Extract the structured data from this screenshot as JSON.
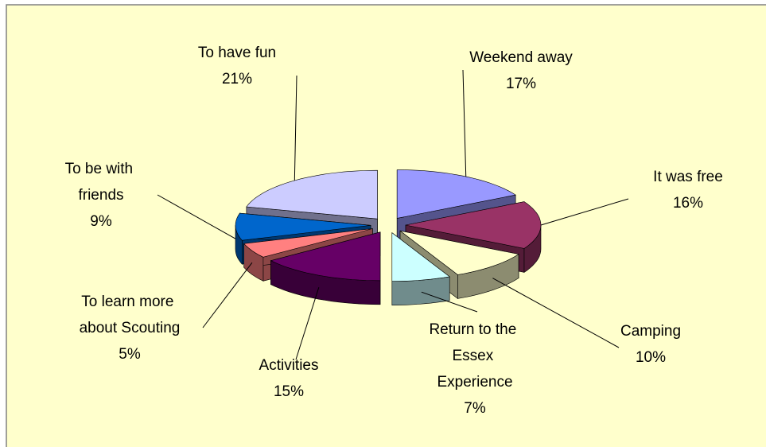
{
  "chart_data": {
    "type": "pie",
    "categories": [
      "Weekend away",
      "It was free",
      "Camping",
      "Return to the Essex Experience",
      "Activities",
      "To learn more about Scouting",
      "To be with friends",
      "To have fun"
    ],
    "values": [
      17,
      16,
      10,
      7,
      15,
      5,
      9,
      21
    ],
    "value_labels": [
      "17%",
      "16%",
      "10%",
      "7%",
      "15%",
      "5%",
      "9%",
      "21%"
    ],
    "colors": [
      "#9999ff",
      "#993366",
      "#ffffcc",
      "#ccffff",
      "#660066",
      "#ff8080",
      "#0066cc",
      "#ccccff"
    ]
  }
}
